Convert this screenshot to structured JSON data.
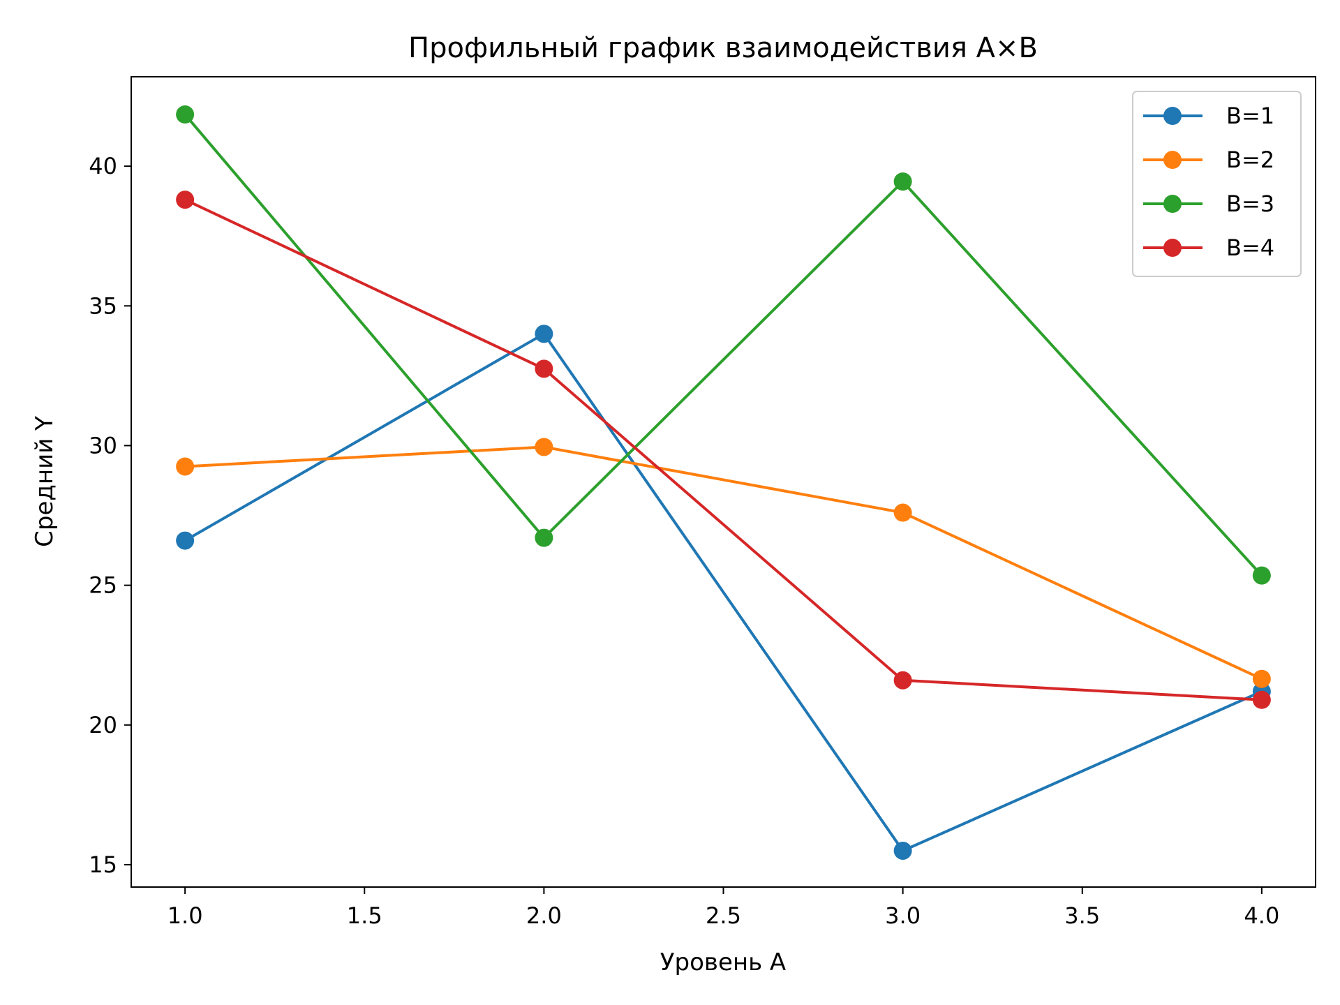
{
  "chart_data": {
    "type": "line",
    "title": "Профильный график взаимодействия  A×B",
    "xlabel": "Уровень A",
    "ylabel": "Средний Y",
    "x": [
      1.0,
      2.0,
      3.0,
      4.0
    ],
    "xlim": [
      0.85,
      4.15
    ],
    "ylim": [
      14.2,
      43.2
    ],
    "xticks": [
      "1.0",
      "1.5",
      "2.0",
      "2.5",
      "3.0",
      "3.5",
      "4.0"
    ],
    "yticks": [
      "15",
      "20",
      "25",
      "30",
      "35",
      "40"
    ],
    "grid": false,
    "legend_position": "top-right",
    "series": [
      {
        "name": "B=1",
        "color": "#1f77b4",
        "values": [
          26.6,
          34.0,
          15.5,
          21.2
        ]
      },
      {
        "name": "B=2",
        "color": "#ff7f0e",
        "values": [
          29.25,
          29.95,
          27.6,
          21.65
        ]
      },
      {
        "name": "B=3",
        "color": "#2ca02c",
        "values": [
          41.85,
          26.7,
          39.45,
          25.35
        ]
      },
      {
        "name": "B=4",
        "color": "#d62728",
        "values": [
          38.8,
          32.75,
          21.6,
          20.9
        ]
      }
    ]
  }
}
